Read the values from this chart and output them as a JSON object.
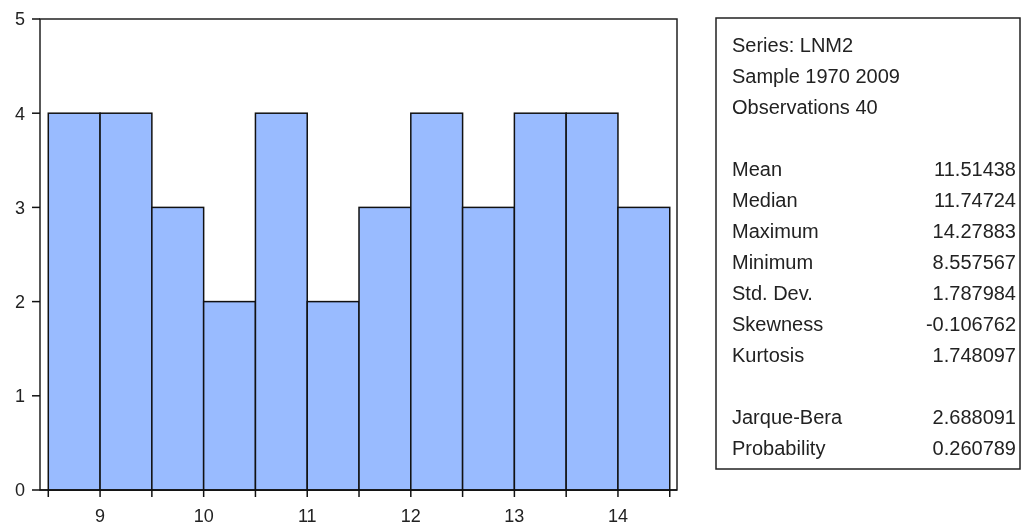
{
  "chart_data": [
    {
      "type": "histogram",
      "bins": [
        8.5,
        9,
        9.5,
        10,
        10.5,
        11,
        11.5,
        12,
        12.5,
        13,
        13.5,
        14,
        14.5
      ],
      "values": [
        4,
        4,
        3,
        2,
        4,
        2,
        3,
        4,
        3,
        4,
        4,
        3
      ],
      "color": "#99bbff",
      "xlim": [
        8.42,
        14.57
      ],
      "ylim": [
        0,
        5
      ],
      "xticks": [
        {
          "value": 8.5,
          "label": null
        },
        9,
        {
          "value": 9.5,
          "label": null
        },
        10,
        {
          "value": 10.5,
          "label": null
        },
        11,
        {
          "value": 11.5,
          "label": null
        },
        12,
        {
          "value": 12.5,
          "label": null
        },
        13,
        {
          "value": 13.5,
          "label": null
        },
        14,
        {
          "value": 14.5,
          "label": null
        }
      ],
      "yticks": [
        0,
        1,
        2,
        3,
        4,
        5
      ]
    },
    {
      "type": "other",
      "annotations": [
        "Series: LNM2",
        "Sample 1970 2009",
        "Observations 40"
      ],
      "categories": [
        "Mean",
        "Median",
        "Maximum",
        "Minimum",
        "Std. Dev.",
        "Skewness",
        "Kurtosis",
        null,
        "Jarque-Bera",
        "Probability"
      ],
      "values": [
        11.51438,
        11.74724,
        14.27883,
        8.557567,
        1.787984,
        -0.106762,
        1.748097,
        null,
        2.688091,
        0.260789
      ],
      "data_labels": true
    }
  ]
}
